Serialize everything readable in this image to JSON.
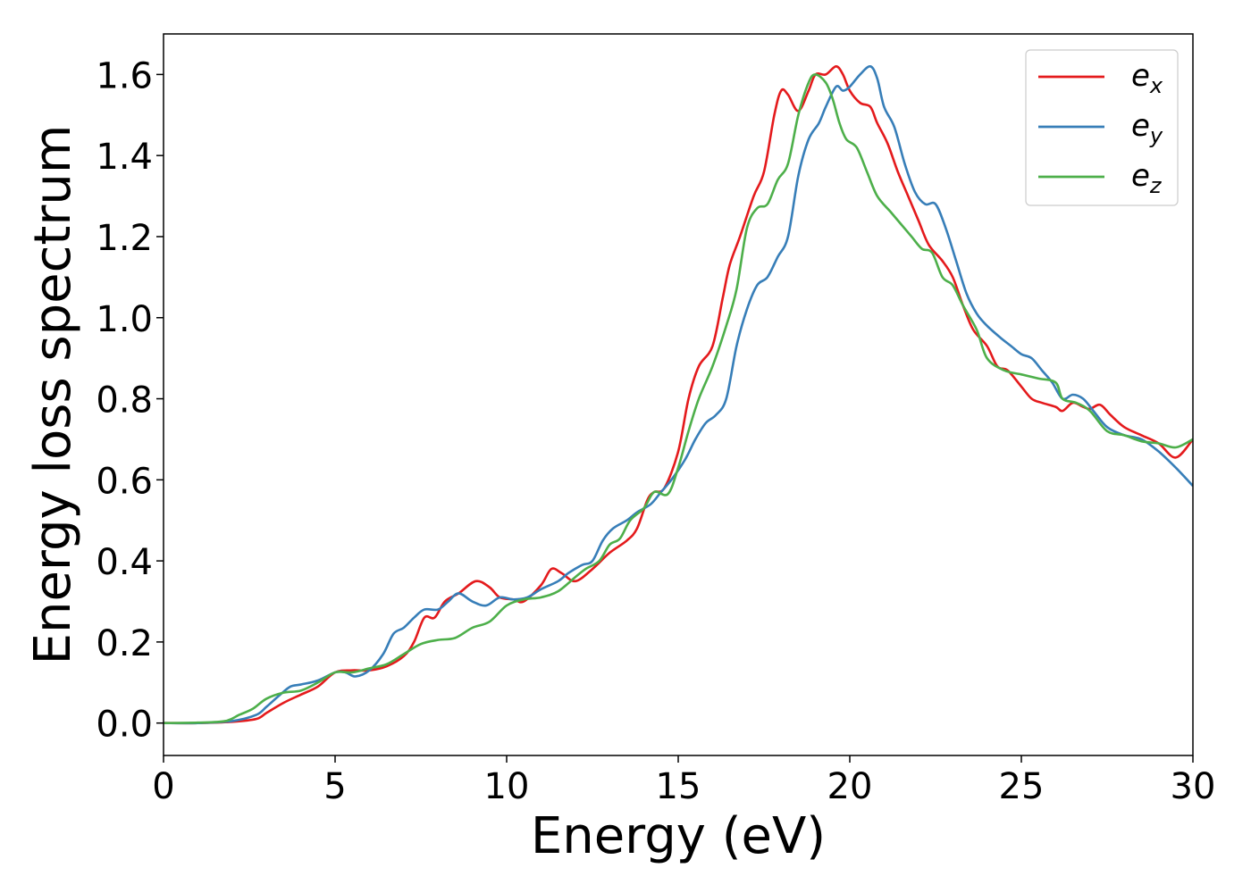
{
  "chart_data": {
    "type": "line",
    "title": "",
    "xlabel": "Energy (eV)",
    "ylabel": "Energy loss spectrum",
    "xlim": [
      0,
      30
    ],
    "ylim": [
      -0.08,
      1.7
    ],
    "xticks": [
      0,
      5,
      10,
      15,
      20,
      25,
      30
    ],
    "xtick_labels": [
      "0",
      "5",
      "10",
      "15",
      "20",
      "25",
      "30"
    ],
    "yticks": [
      0.0,
      0.2,
      0.4,
      0.6,
      0.8,
      1.0,
      1.2,
      1.4,
      1.6
    ],
    "ytick_labels": [
      "0.0",
      "0.2",
      "0.4",
      "0.6",
      "0.8",
      "1.0",
      "1.2",
      "1.4",
      "1.6"
    ],
    "grid": false,
    "legend_position": "top-right",
    "series": [
      {
        "name": "e_x",
        "label_main": "e",
        "label_sub": "x",
        "color": "#e41a1c",
        "points": [
          [
            0,
            0
          ],
          [
            1,
            0
          ],
          [
            2,
            0.003
          ],
          [
            2.7,
            0.01
          ],
          [
            3,
            0.025
          ],
          [
            3.5,
            0.05
          ],
          [
            4,
            0.07
          ],
          [
            4.5,
            0.09
          ],
          [
            5,
            0.125
          ],
          [
            5.5,
            0.13
          ],
          [
            6,
            0.13
          ],
          [
            6.5,
            0.14
          ],
          [
            7,
            0.165
          ],
          [
            7.3,
            0.2
          ],
          [
            7.6,
            0.26
          ],
          [
            7.9,
            0.26
          ],
          [
            8.2,
            0.3
          ],
          [
            8.6,
            0.32
          ],
          [
            9.1,
            0.35
          ],
          [
            9.5,
            0.335
          ],
          [
            9.8,
            0.31
          ],
          [
            10.2,
            0.305
          ],
          [
            10.5,
            0.3
          ],
          [
            11,
            0.34
          ],
          [
            11.3,
            0.38
          ],
          [
            11.6,
            0.37
          ],
          [
            12,
            0.35
          ],
          [
            12.5,
            0.38
          ],
          [
            13,
            0.42
          ],
          [
            13.5,
            0.45
          ],
          [
            13.8,
            0.48
          ],
          [
            14.1,
            0.55
          ],
          [
            14.3,
            0.57
          ],
          [
            14.6,
            0.58
          ],
          [
            15,
            0.67
          ],
          [
            15.3,
            0.8
          ],
          [
            15.6,
            0.88
          ],
          [
            16,
            0.93
          ],
          [
            16.3,
            1.05
          ],
          [
            16.5,
            1.13
          ],
          [
            16.8,
            1.2
          ],
          [
            17.2,
            1.3
          ],
          [
            17.5,
            1.36
          ],
          [
            17.8,
            1.5
          ],
          [
            18,
            1.56
          ],
          [
            18.2,
            1.55
          ],
          [
            18.5,
            1.51
          ],
          [
            18.8,
            1.56
          ],
          [
            19,
            1.6
          ],
          [
            19.3,
            1.6
          ],
          [
            19.6,
            1.62
          ],
          [
            19.8,
            1.6
          ],
          [
            20,
            1.56
          ],
          [
            20.3,
            1.53
          ],
          [
            20.6,
            1.52
          ],
          [
            20.8,
            1.48
          ],
          [
            21.1,
            1.43
          ],
          [
            21.4,
            1.36
          ],
          [
            21.7,
            1.3
          ],
          [
            22,
            1.24
          ],
          [
            22.3,
            1.18
          ],
          [
            22.7,
            1.14
          ],
          [
            23,
            1.1
          ],
          [
            23.3,
            1.03
          ],
          [
            23.6,
            0.97
          ],
          [
            24,
            0.93
          ],
          [
            24.3,
            0.88
          ],
          [
            24.6,
            0.87
          ],
          [
            25,
            0.83
          ],
          [
            25.3,
            0.8
          ],
          [
            25.6,
            0.79
          ],
          [
            26,
            0.78
          ],
          [
            26.2,
            0.77
          ],
          [
            26.5,
            0.79
          ],
          [
            26.8,
            0.78
          ],
          [
            27,
            0.775
          ],
          [
            27.3,
            0.785
          ],
          [
            27.6,
            0.76
          ],
          [
            28,
            0.73
          ],
          [
            28.5,
            0.71
          ],
          [
            29,
            0.69
          ],
          [
            29.5,
            0.655
          ],
          [
            30,
            0.7
          ]
        ]
      },
      {
        "name": "e_y",
        "label_main": "e",
        "label_sub": "y",
        "color": "#377eb8",
        "points": [
          [
            0,
            0
          ],
          [
            1,
            0
          ],
          [
            2,
            0.005
          ],
          [
            2.7,
            0.02
          ],
          [
            3,
            0.04
          ],
          [
            3.4,
            0.07
          ],
          [
            3.7,
            0.09
          ],
          [
            4,
            0.095
          ],
          [
            4.5,
            0.105
          ],
          [
            5,
            0.125
          ],
          [
            5.3,
            0.125
          ],
          [
            5.6,
            0.115
          ],
          [
            6,
            0.13
          ],
          [
            6.4,
            0.17
          ],
          [
            6.7,
            0.22
          ],
          [
            7,
            0.235
          ],
          [
            7.3,
            0.26
          ],
          [
            7.6,
            0.28
          ],
          [
            8,
            0.28
          ],
          [
            8.3,
            0.3
          ],
          [
            8.6,
            0.32
          ],
          [
            9,
            0.3
          ],
          [
            9.4,
            0.29
          ],
          [
            9.8,
            0.31
          ],
          [
            10.2,
            0.305
          ],
          [
            10.6,
            0.31
          ],
          [
            11,
            0.33
          ],
          [
            11.5,
            0.35
          ],
          [
            11.8,
            0.37
          ],
          [
            12.2,
            0.39
          ],
          [
            12.5,
            0.4
          ],
          [
            12.8,
            0.45
          ],
          [
            13.1,
            0.48
          ],
          [
            13.5,
            0.5
          ],
          [
            13.8,
            0.52
          ],
          [
            14.2,
            0.54
          ],
          [
            14.5,
            0.57
          ],
          [
            14.8,
            0.6
          ],
          [
            15.2,
            0.65
          ],
          [
            15.5,
            0.7
          ],
          [
            15.8,
            0.74
          ],
          [
            16.1,
            0.76
          ],
          [
            16.4,
            0.8
          ],
          [
            16.7,
            0.93
          ],
          [
            17,
            1.02
          ],
          [
            17.3,
            1.08
          ],
          [
            17.6,
            1.1
          ],
          [
            17.9,
            1.15
          ],
          [
            18.2,
            1.2
          ],
          [
            18.5,
            1.35
          ],
          [
            18.8,
            1.44
          ],
          [
            19.1,
            1.48
          ],
          [
            19.3,
            1.52
          ],
          [
            19.6,
            1.57
          ],
          [
            19.8,
            1.56
          ],
          [
            20,
            1.57
          ],
          [
            20.3,
            1.6
          ],
          [
            20.6,
            1.62
          ],
          [
            20.8,
            1.59
          ],
          [
            21,
            1.52
          ],
          [
            21.3,
            1.47
          ],
          [
            21.6,
            1.38
          ],
          [
            21.9,
            1.31
          ],
          [
            22.2,
            1.28
          ],
          [
            22.5,
            1.28
          ],
          [
            22.8,
            1.22
          ],
          [
            23.1,
            1.14
          ],
          [
            23.4,
            1.06
          ],
          [
            23.7,
            1.01
          ],
          [
            24,
            0.98
          ],
          [
            24.4,
            0.95
          ],
          [
            24.7,
            0.93
          ],
          [
            25,
            0.91
          ],
          [
            25.3,
            0.9
          ],
          [
            25.6,
            0.87
          ],
          [
            25.9,
            0.84
          ],
          [
            26.2,
            0.8
          ],
          [
            26.5,
            0.81
          ],
          [
            26.8,
            0.8
          ],
          [
            27.1,
            0.77
          ],
          [
            27.5,
            0.73
          ],
          [
            28,
            0.71
          ],
          [
            28.5,
            0.7
          ],
          [
            29,
            0.67
          ],
          [
            29.5,
            0.63
          ],
          [
            30,
            0.585
          ]
        ]
      },
      {
        "name": "e_z",
        "label_main": "e",
        "label_sub": "z",
        "color": "#4daf4a",
        "points": [
          [
            0,
            0
          ],
          [
            1,
            0.001
          ],
          [
            1.8,
            0.005
          ],
          [
            2.2,
            0.02
          ],
          [
            2.6,
            0.035
          ],
          [
            3,
            0.06
          ],
          [
            3.5,
            0.075
          ],
          [
            4,
            0.08
          ],
          [
            4.5,
            0.1
          ],
          [
            5,
            0.125
          ],
          [
            5.5,
            0.125
          ],
          [
            6,
            0.135
          ],
          [
            6.5,
            0.145
          ],
          [
            7,
            0.17
          ],
          [
            7.5,
            0.195
          ],
          [
            8,
            0.205
          ],
          [
            8.5,
            0.21
          ],
          [
            9,
            0.235
          ],
          [
            9.5,
            0.25
          ],
          [
            10,
            0.29
          ],
          [
            10.5,
            0.305
          ],
          [
            11,
            0.31
          ],
          [
            11.5,
            0.325
          ],
          [
            12,
            0.36
          ],
          [
            12.3,
            0.38
          ],
          [
            12.7,
            0.4
          ],
          [
            13,
            0.44
          ],
          [
            13.3,
            0.455
          ],
          [
            13.6,
            0.5
          ],
          [
            14,
            0.53
          ],
          [
            14.3,
            0.57
          ],
          [
            14.7,
            0.565
          ],
          [
            15,
            0.63
          ],
          [
            15.3,
            0.72
          ],
          [
            15.6,
            0.8
          ],
          [
            16,
            0.88
          ],
          [
            16.4,
            0.98
          ],
          [
            16.7,
            1.07
          ],
          [
            17,
            1.22
          ],
          [
            17.3,
            1.27
          ],
          [
            17.6,
            1.28
          ],
          [
            17.9,
            1.34
          ],
          [
            18.2,
            1.38
          ],
          [
            18.5,
            1.5
          ],
          [
            18.8,
            1.58
          ],
          [
            19,
            1.6
          ],
          [
            19.3,
            1.58
          ],
          [
            19.5,
            1.54
          ],
          [
            19.7,
            1.48
          ],
          [
            19.9,
            1.44
          ],
          [
            20.2,
            1.42
          ],
          [
            20.5,
            1.36
          ],
          [
            20.8,
            1.3
          ],
          [
            21.2,
            1.26
          ],
          [
            21.5,
            1.23
          ],
          [
            21.8,
            1.2
          ],
          [
            22.1,
            1.17
          ],
          [
            22.4,
            1.16
          ],
          [
            22.7,
            1.1
          ],
          [
            23,
            1.08
          ],
          [
            23.3,
            1.03
          ],
          [
            23.7,
            0.97
          ],
          [
            24,
            0.9
          ],
          [
            24.5,
            0.87
          ],
          [
            25,
            0.86
          ],
          [
            25.5,
            0.85
          ],
          [
            26,
            0.84
          ],
          [
            26.2,
            0.8
          ],
          [
            26.6,
            0.79
          ],
          [
            27,
            0.77
          ],
          [
            27.5,
            0.72
          ],
          [
            28,
            0.71
          ],
          [
            28.5,
            0.695
          ],
          [
            29,
            0.69
          ],
          [
            29.5,
            0.68
          ],
          [
            30,
            0.7
          ]
        ]
      }
    ]
  }
}
